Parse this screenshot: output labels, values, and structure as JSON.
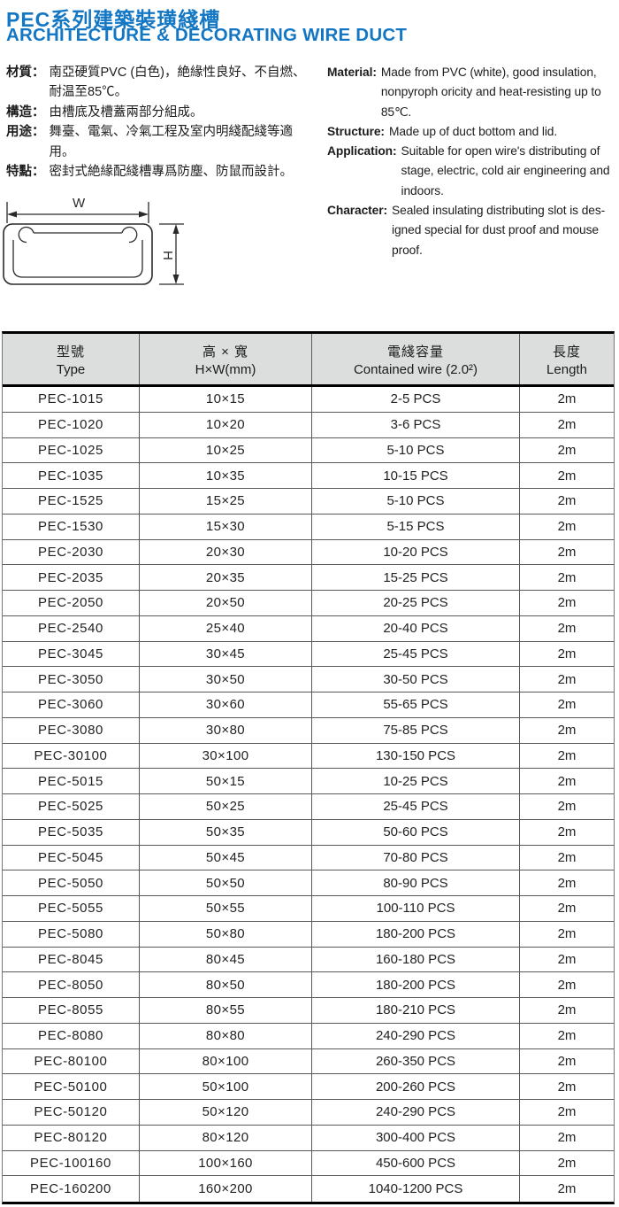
{
  "colors": {
    "accent": "#1377c4",
    "header_bg": "#dcdedd"
  },
  "header": {
    "title_cn": "PEC系列建築裝璜綫槽",
    "title_en": "ARCHITECTURE & DECORATING WIRE DUCT"
  },
  "specs_cn": [
    {
      "label": "材質：",
      "lines": [
        "南亞硬質PVC (白色)，絶緣性良好、不自燃、",
        "耐温至85℃。"
      ]
    },
    {
      "label": "構造：",
      "lines": [
        "由槽底及槽蓋兩部分組成。"
      ]
    },
    {
      "label": "用途：",
      "lines": [
        "舞臺、電氣、冷氣工程及室内明綫配綫等適",
        "用。"
      ]
    },
    {
      "label": "特點：",
      "lines": [
        "密封式絶緣配綫槽專爲防塵、防鼠而設計。"
      ]
    }
  ],
  "specs_en": [
    {
      "label": "Material:",
      "lines": [
        "Made from PVC (white), good insulation,",
        "nonpyroph oricity and heat-resisting up to",
        "85℃."
      ]
    },
    {
      "label": "Structure:",
      "lines": [
        "Made up of duct bottom and lid."
      ]
    },
    {
      "label": "Application:",
      "lines": [
        "Suitable for open wire's distributing of",
        "stage, electric, cold air engineering and",
        "indoors."
      ]
    },
    {
      "label": "Character:",
      "lines": [
        "Sealed insulating distributing slot is des-",
        "igned special for dust proof and mouse",
        "proof."
      ]
    }
  ],
  "diagram": {
    "width_label": "W",
    "height_label": "H"
  },
  "table": {
    "headers": [
      {
        "cn": "型號",
        "en": "Type"
      },
      {
        "cn": "高 × 寬",
        "en": "H×W(mm)"
      },
      {
        "cn": "電綫容量",
        "en": "Contained wire (2.0²)"
      },
      {
        "cn": "長度",
        "en": "Length"
      }
    ],
    "rows": [
      {
        "type": "PEC-1015",
        "hw": "10×15",
        "wire": "2-5 PCS",
        "length": "2m"
      },
      {
        "type": "PEC-1020",
        "hw": "10×20",
        "wire": "3-6 PCS",
        "length": "2m"
      },
      {
        "type": "PEC-1025",
        "hw": "10×25",
        "wire": "5-10 PCS",
        "length": "2m"
      },
      {
        "type": "PEC-1035",
        "hw": "10×35",
        "wire": "10-15 PCS",
        "length": "2m"
      },
      {
        "type": "PEC-1525",
        "hw": "15×25",
        "wire": "5-10 PCS",
        "length": "2m"
      },
      {
        "type": "PEC-1530",
        "hw": "15×30",
        "wire": "5-15 PCS",
        "length": "2m"
      },
      {
        "type": "PEC-2030",
        "hw": "20×30",
        "wire": "10-20 PCS",
        "length": "2m"
      },
      {
        "type": "PEC-2035",
        "hw": "20×35",
        "wire": "15-25 PCS",
        "length": "2m"
      },
      {
        "type": "PEC-2050",
        "hw": "20×50",
        "wire": "20-25 PCS",
        "length": "2m"
      },
      {
        "type": "PEC-2540",
        "hw": "25×40",
        "wire": "20-40 PCS",
        "length": "2m"
      },
      {
        "type": "PEC-3045",
        "hw": "30×45",
        "wire": "25-45 PCS",
        "length": "2m"
      },
      {
        "type": "PEC-3050",
        "hw": "30×50",
        "wire": "30-50 PCS",
        "length": "2m"
      },
      {
        "type": "PEC-3060",
        "hw": "30×60",
        "wire": "55-65 PCS",
        "length": "2m"
      },
      {
        "type": "PEC-3080",
        "hw": "30×80",
        "wire": "75-85 PCS",
        "length": "2m"
      },
      {
        "type": "PEC-30100",
        "hw": "30×100",
        "wire": "130-150 PCS",
        "length": "2m"
      },
      {
        "type": "PEC-5015",
        "hw": "50×15",
        "wire": "10-25 PCS",
        "length": "2m"
      },
      {
        "type": "PEC-5025",
        "hw": "50×25",
        "wire": "25-45 PCS",
        "length": "2m"
      },
      {
        "type": "PEC-5035",
        "hw": "50×35",
        "wire": "50-60 PCS",
        "length": "2m"
      },
      {
        "type": "PEC-5045",
        "hw": "50×45",
        "wire": "70-80 PCS",
        "length": "2m"
      },
      {
        "type": "PEC-5050",
        "hw": "50×50",
        "wire": "80-90 PCS",
        "length": "2m"
      },
      {
        "type": "PEC-5055",
        "hw": "50×55",
        "wire": "100-110 PCS",
        "length": "2m"
      },
      {
        "type": "PEC-5080",
        "hw": "50×80",
        "wire": "180-200 PCS",
        "length": "2m"
      },
      {
        "type": "PEC-8045",
        "hw": "80×45",
        "wire": "160-180 PCS",
        "length": "2m"
      },
      {
        "type": "PEC-8050",
        "hw": "80×50",
        "wire": "180-200 PCS",
        "length": "2m"
      },
      {
        "type": "PEC-8055",
        "hw": "80×55",
        "wire": "180-210 PCS",
        "length": "2m"
      },
      {
        "type": "PEC-8080",
        "hw": "80×80",
        "wire": "240-290 PCS",
        "length": "2m"
      },
      {
        "type": "PEC-80100",
        "hw": "80×100",
        "wire": "260-350 PCS",
        "length": "2m"
      },
      {
        "type": "PEC-50100",
        "hw": "50×100",
        "wire": "200-260 PCS",
        "length": "2m"
      },
      {
        "type": "PEC-50120",
        "hw": "50×120",
        "wire": "240-290 PCS",
        "length": "2m"
      },
      {
        "type": "PEC-80120",
        "hw": "80×120",
        "wire": "300-400 PCS",
        "length": "2m"
      },
      {
        "type": "PEC-100160",
        "hw": "100×160",
        "wire": "450-600 PCS",
        "length": "2m"
      },
      {
        "type": "PEC-160200",
        "hw": "160×200",
        "wire": "1040-1200 PCS",
        "length": "2m"
      }
    ]
  }
}
